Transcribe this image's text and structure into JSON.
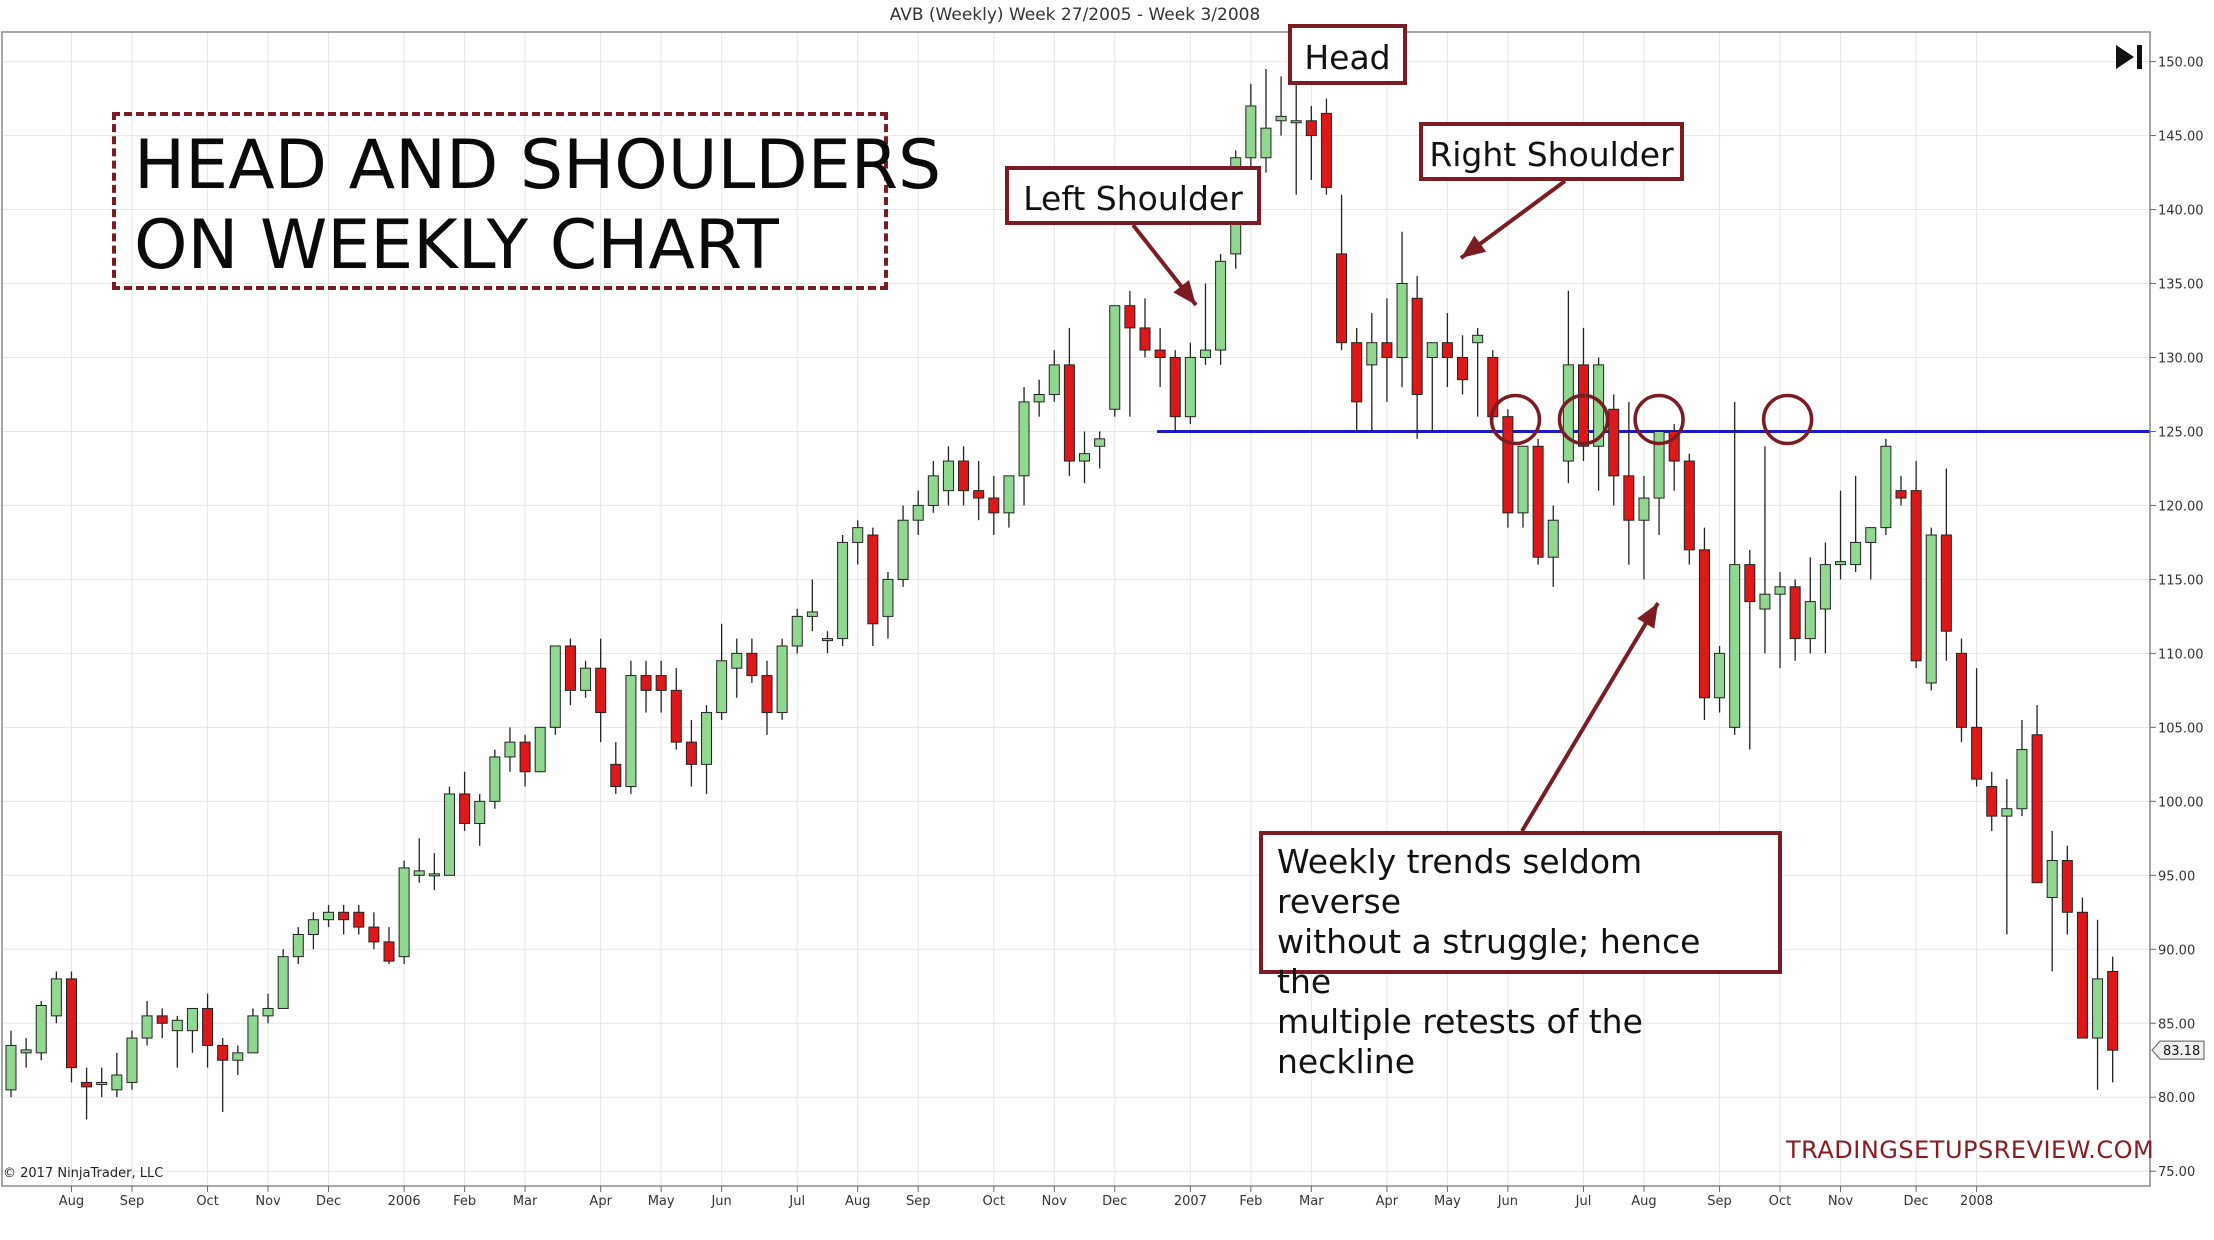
{
  "chart_title": "AVB (Weekly)  Week 27/2005 - Week 3/2008",
  "headline": [
    "HEAD AND SHOULDERS",
    "ON WEEKLY CHART"
  ],
  "labels": {
    "head": "Head",
    "left_shoulder": "Left Shoulder",
    "right_shoulder": "Right Shoulder"
  },
  "note_lines": [
    "Weekly trends seldom reverse",
    "without a struggle; hence the",
    "multiple retests of the neckline"
  ],
  "watermark": "TRADINGSETUPSREVIEW.COM",
  "copyright": "© 2017 NinjaTrader, LLC",
  "colors": {
    "up": "#90d890",
    "down": "#dd1818",
    "neckline": "#1a1ac8",
    "annotation": "#7b1c22",
    "grid": "#e6e6e6"
  },
  "icons": [
    "play-end-icon"
  ],
  "chart_data": {
    "type": "candlestick",
    "symbol": "AVB",
    "interval": "Weekly",
    "ylim": [
      74,
      152
    ],
    "y_ticks": [
      "75.00",
      "80.00",
      "85.00",
      "90.00",
      "95.00",
      "100.00",
      "105.00",
      "110.00",
      "115.00",
      "120.00",
      "125.00",
      "130.00",
      "135.00",
      "140.00",
      "145.00",
      "150.00"
    ],
    "x_ticks": [
      {
        "label": "Aug",
        "bar": 4
      },
      {
        "label": "Sep",
        "bar": 8
      },
      {
        "label": "Oct",
        "bar": 13
      },
      {
        "label": "Nov",
        "bar": 17
      },
      {
        "label": "Dec",
        "bar": 21
      },
      {
        "label": "2006",
        "bar": 26
      },
      {
        "label": "Feb",
        "bar": 30
      },
      {
        "label": "Mar",
        "bar": 34
      },
      {
        "label": "Apr",
        "bar": 39
      },
      {
        "label": "May",
        "bar": 43
      },
      {
        "label": "Jun",
        "bar": 47
      },
      {
        "label": "Jul",
        "bar": 52
      },
      {
        "label": "Aug",
        "bar": 56
      },
      {
        "label": "Sep",
        "bar": 60
      },
      {
        "label": "Oct",
        "bar": 65
      },
      {
        "label": "Nov",
        "bar": 69
      },
      {
        "label": "Dec",
        "bar": 73
      },
      {
        "label": "2007",
        "bar": 78
      },
      {
        "label": "Feb",
        "bar": 82
      },
      {
        "label": "Mar",
        "bar": 86
      },
      {
        "label": "Apr",
        "bar": 91
      },
      {
        "label": "May",
        "bar": 95
      },
      {
        "label": "Jun",
        "bar": 99
      },
      {
        "label": "Jul",
        "bar": 104
      },
      {
        "label": "Aug",
        "bar": 108
      },
      {
        "label": "Sep",
        "bar": 113
      },
      {
        "label": "Oct",
        "bar": 117
      },
      {
        "label": "Nov",
        "bar": 121
      },
      {
        "label": "Dec",
        "bar": 126
      },
      {
        "label": "2008",
        "bar": 130
      }
    ],
    "last_price": "83.18",
    "neckline": {
      "start_bar": 76,
      "value": 125.0
    },
    "retest_circles": [
      99.5,
      104,
      109,
      117.5
    ],
    "candles": [
      {
        "o": 80.5,
        "h": 84.5,
        "l": 80,
        "c": 83.5
      },
      {
        "o": 83,
        "h": 84,
        "l": 82,
        "c": 83.2
      },
      {
        "o": 83,
        "h": 86.5,
        "l": 82.5,
        "c": 86.2
      },
      {
        "o": 85.5,
        "h": 88.5,
        "l": 85,
        "c": 88
      },
      {
        "o": 88,
        "h": 88.5,
        "l": 81,
        "c": 82
      },
      {
        "o": 81,
        "h": 82,
        "l": 78.5,
        "c": 80.7
      },
      {
        "o": 81,
        "h": 82,
        "l": 80,
        "c": 81
      },
      {
        "o": 80.5,
        "h": 83,
        "l": 80,
        "c": 81.5
      },
      {
        "o": 81,
        "h": 84.5,
        "l": 80.5,
        "c": 84
      },
      {
        "o": 84,
        "h": 86.5,
        "l": 83.5,
        "c": 85.5
      },
      {
        "o": 85.5,
        "h": 86,
        "l": 84,
        "c": 85
      },
      {
        "o": 84.5,
        "h": 85.5,
        "l": 82,
        "c": 85.2
      },
      {
        "o": 84.5,
        "h": 86,
        "l": 83,
        "c": 86
      },
      {
        "o": 86,
        "h": 87,
        "l": 82,
        "c": 83.5
      },
      {
        "o": 83.5,
        "h": 84,
        "l": 79,
        "c": 82.5
      },
      {
        "o": 82.5,
        "h": 83.5,
        "l": 81.5,
        "c": 83
      },
      {
        "o": 83,
        "h": 86,
        "l": 83,
        "c": 85.5
      },
      {
        "o": 85.5,
        "h": 87,
        "l": 85,
        "c": 86
      },
      {
        "o": 86,
        "h": 90,
        "l": 86,
        "c": 89.5
      },
      {
        "o": 89.5,
        "h": 91.5,
        "l": 89,
        "c": 91
      },
      {
        "o": 91,
        "h": 92.5,
        "l": 90,
        "c": 92
      },
      {
        "o": 92,
        "h": 93,
        "l": 91.5,
        "c": 92.5
      },
      {
        "o": 92.5,
        "h": 93,
        "l": 91,
        "c": 92
      },
      {
        "o": 92.5,
        "h": 93,
        "l": 91,
        "c": 91.5
      },
      {
        "o": 91.5,
        "h": 92.5,
        "l": 90,
        "c": 90.5
      },
      {
        "o": 90.5,
        "h": 91.5,
        "l": 89,
        "c": 89.2
      },
      {
        "o": 89.5,
        "h": 96,
        "l": 89,
        "c": 95.5
      },
      {
        "o": 95,
        "h": 97.5,
        "l": 94.5,
        "c": 95.3
      },
      {
        "o": 95,
        "h": 96.5,
        "l": 94,
        "c": 95.1
      },
      {
        "o": 95,
        "h": 101,
        "l": 95,
        "c": 100.5
      },
      {
        "o": 100.5,
        "h": 102,
        "l": 98,
        "c": 98.5
      },
      {
        "o": 98.5,
        "h": 100.5,
        "l": 97,
        "c": 100
      },
      {
        "o": 100,
        "h": 103.5,
        "l": 99.5,
        "c": 103
      },
      {
        "o": 103,
        "h": 105,
        "l": 102,
        "c": 104
      },
      {
        "o": 104,
        "h": 104.5,
        "l": 101,
        "c": 102
      },
      {
        "o": 102,
        "h": 105,
        "l": 102,
        "c": 105
      },
      {
        "o": 105,
        "h": 110.5,
        "l": 104.5,
        "c": 110.5
      },
      {
        "o": 110.5,
        "h": 111,
        "l": 106.5,
        "c": 107.5
      },
      {
        "o": 107.5,
        "h": 109.5,
        "l": 107,
        "c": 109
      },
      {
        "o": 109,
        "h": 111,
        "l": 104,
        "c": 106
      },
      {
        "o": 102.5,
        "h": 104,
        "l": 100.5,
        "c": 101
      },
      {
        "o": 101,
        "h": 109.5,
        "l": 100.5,
        "c": 108.5
      },
      {
        "o": 108.5,
        "h": 109.5,
        "l": 106,
        "c": 107.5
      },
      {
        "o": 108.5,
        "h": 109.5,
        "l": 106,
        "c": 107.5
      },
      {
        "o": 107.5,
        "h": 109,
        "l": 103.5,
        "c": 104
      },
      {
        "o": 104,
        "h": 105.5,
        "l": 101,
        "c": 102.5
      },
      {
        "o": 102.5,
        "h": 106.5,
        "l": 100.5,
        "c": 106
      },
      {
        "o": 106,
        "h": 112,
        "l": 105.5,
        "c": 109.5
      },
      {
        "o": 109,
        "h": 111,
        "l": 107,
        "c": 110
      },
      {
        "o": 110,
        "h": 111,
        "l": 108,
        "c": 108.5
      },
      {
        "o": 108.5,
        "h": 109.5,
        "l": 104.5,
        "c": 106
      },
      {
        "o": 106,
        "h": 111,
        "l": 105.5,
        "c": 110.5
      },
      {
        "o": 110.5,
        "h": 113,
        "l": 110,
        "c": 112.5
      },
      {
        "o": 112.5,
        "h": 115,
        "l": 111.5,
        "c": 112.8
      },
      {
        "o": 111,
        "h": 111.5,
        "l": 110,
        "c": 111
      },
      {
        "o": 111,
        "h": 118,
        "l": 110.5,
        "c": 117.5
      },
      {
        "o": 117.5,
        "h": 119,
        "l": 116,
        "c": 118.5
      },
      {
        "o": 118,
        "h": 118.5,
        "l": 110.5,
        "c": 112
      },
      {
        "o": 112.5,
        "h": 115.5,
        "l": 111,
        "c": 115
      },
      {
        "o": 115,
        "h": 120,
        "l": 114.5,
        "c": 119
      },
      {
        "o": 119,
        "h": 121,
        "l": 118,
        "c": 120
      },
      {
        "o": 120,
        "h": 123,
        "l": 119.5,
        "c": 122
      },
      {
        "o": 121,
        "h": 124,
        "l": 120,
        "c": 123
      },
      {
        "o": 123,
        "h": 124,
        "l": 120,
        "c": 121
      },
      {
        "o": 121,
        "h": 123,
        "l": 119,
        "c": 120.5
      },
      {
        "o": 120.5,
        "h": 122,
        "l": 118,
        "c": 119.5
      },
      {
        "o": 119.5,
        "h": 122,
        "l": 118.5,
        "c": 122
      },
      {
        "o": 122,
        "h": 128,
        "l": 120,
        "c": 127
      },
      {
        "o": 127,
        "h": 128.5,
        "l": 126,
        "c": 127.5
      },
      {
        "o": 127.5,
        "h": 130.5,
        "l": 127,
        "c": 129.5
      },
      {
        "o": 129.5,
        "h": 132,
        "l": 122,
        "c": 123
      },
      {
        "o": 123,
        "h": 125,
        "l": 121.5,
        "c": 123.5
      },
      {
        "o": 124,
        "h": 125,
        "l": 122.5,
        "c": 124.5
      },
      {
        "o": 126.5,
        "h": 133.5,
        "l": 126,
        "c": 133.5
      },
      {
        "o": 133.5,
        "h": 134.5,
        "l": 126,
        "c": 132
      },
      {
        "o": 132,
        "h": 134,
        "l": 130,
        "c": 130.5
      },
      {
        "o": 130.5,
        "h": 132,
        "l": 128,
        "c": 130
      },
      {
        "o": 130,
        "h": 130.5,
        "l": 125,
        "c": 126
      },
      {
        "o": 126,
        "h": 131,
        "l": 125.5,
        "c": 130
      },
      {
        "o": 130,
        "h": 135,
        "l": 129.5,
        "c": 130.5
      },
      {
        "o": 130.5,
        "h": 137,
        "l": 129.5,
        "c": 136.5
      },
      {
        "o": 137,
        "h": 144,
        "l": 136,
        "c": 143.5
      },
      {
        "o": 143.5,
        "h": 148.5,
        "l": 142,
        "c": 147
      },
      {
        "o": 143.5,
        "h": 149.5,
        "l": 142.5,
        "c": 145.5
      },
      {
        "o": 146,
        "h": 149,
        "l": 145,
        "c": 146.3
      },
      {
        "o": 146,
        "h": 150,
        "l": 141,
        "c": 146
      },
      {
        "o": 146,
        "h": 147,
        "l": 142,
        "c": 145
      },
      {
        "o": 146.5,
        "h": 147.5,
        "l": 141,
        "c": 141.5
      },
      {
        "o": 137,
        "h": 141,
        "l": 130.5,
        "c": 131
      },
      {
        "o": 131,
        "h": 132,
        "l": 125,
        "c": 127
      },
      {
        "o": 129.5,
        "h": 133,
        "l": 125,
        "c": 131
      },
      {
        "o": 131,
        "h": 134,
        "l": 127,
        "c": 130
      },
      {
        "o": 130,
        "h": 138.5,
        "l": 128,
        "c": 135
      },
      {
        "o": 134,
        "h": 135.5,
        "l": 124.5,
        "c": 127.5
      },
      {
        "o": 130,
        "h": 131,
        "l": 125,
        "c": 131
      },
      {
        "o": 131,
        "h": 133,
        "l": 128,
        "c": 130
      },
      {
        "o": 130,
        "h": 131.5,
        "l": 127.5,
        "c": 128.5
      },
      {
        "o": 131,
        "h": 132,
        "l": 126,
        "c": 131.5
      },
      {
        "o": 130,
        "h": 130.5,
        "l": 125.5,
        "c": 126
      },
      {
        "o": 126,
        "h": 126.5,
        "l": 118.5,
        "c": 119.5
      },
      {
        "o": 119.5,
        "h": 124,
        "l": 118.5,
        "c": 124
      },
      {
        "o": 124,
        "h": 124.5,
        "l": 116,
        "c": 116.5
      },
      {
        "o": 116.5,
        "h": 120,
        "l": 114.5,
        "c": 119
      },
      {
        "o": 123,
        "h": 134.5,
        "l": 121.5,
        "c": 129.5
      },
      {
        "o": 129.5,
        "h": 132,
        "l": 123,
        "c": 124
      },
      {
        "o": 124,
        "h": 130,
        "l": 121,
        "c": 129.5
      },
      {
        "o": 126.5,
        "h": 127.5,
        "l": 120,
        "c": 122
      },
      {
        "o": 122,
        "h": 127,
        "l": 116,
        "c": 119
      },
      {
        "o": 119,
        "h": 122,
        "l": 115,
        "c": 120.5
      },
      {
        "o": 120.5,
        "h": 125,
        "l": 118,
        "c": 125
      },
      {
        "o": 125,
        "h": 125.5,
        "l": 121,
        "c": 123
      },
      {
        "o": 123,
        "h": 123.5,
        "l": 116,
        "c": 117
      },
      {
        "o": 117,
        "h": 118.5,
        "l": 105.5,
        "c": 107
      },
      {
        "o": 107,
        "h": 110.5,
        "l": 106,
        "c": 110
      },
      {
        "o": 105,
        "h": 127,
        "l": 104.5,
        "c": 116
      },
      {
        "o": 116,
        "h": 117,
        "l": 103.5,
        "c": 113.5
      },
      {
        "o": 113,
        "h": 124,
        "l": 110,
        "c": 114
      },
      {
        "o": 114,
        "h": 115.5,
        "l": 109,
        "c": 114.5
      },
      {
        "o": 114.5,
        "h": 115,
        "l": 109.5,
        "c": 111
      },
      {
        "o": 111,
        "h": 116.5,
        "l": 110,
        "c": 113.5
      },
      {
        "o": 113,
        "h": 117.5,
        "l": 110,
        "c": 116
      },
      {
        "o": 116,
        "h": 121,
        "l": 115,
        "c": 116.2
      },
      {
        "o": 116,
        "h": 122,
        "l": 115.5,
        "c": 117.5
      },
      {
        "o": 117.5,
        "h": 118.5,
        "l": 115,
        "c": 118.5
      },
      {
        "o": 118.5,
        "h": 124.5,
        "l": 118,
        "c": 124
      },
      {
        "o": 121,
        "h": 122,
        "l": 120,
        "c": 120.5
      },
      {
        "o": 121,
        "h": 123,
        "l": 109,
        "c": 109.5
      },
      {
        "o": 108,
        "h": 118.5,
        "l": 107.5,
        "c": 118
      },
      {
        "o": 118,
        "h": 122.5,
        "l": 109.5,
        "c": 111.5
      },
      {
        "o": 110,
        "h": 111,
        "l": 104,
        "c": 105
      },
      {
        "o": 105,
        "h": 109,
        "l": 101,
        "c": 101.5
      },
      {
        "o": 101,
        "h": 102,
        "l": 98,
        "c": 99
      },
      {
        "o": 99,
        "h": 101.5,
        "l": 91,
        "c": 99.5
      },
      {
        "o": 99.5,
        "h": 105.5,
        "l": 99,
        "c": 103.5
      },
      {
        "o": 104.5,
        "h": 106.5,
        "l": 94.5,
        "c": 94.5
      },
      {
        "o": 93.5,
        "h": 98,
        "l": 88.5,
        "c": 96
      },
      {
        "o": 96,
        "h": 97,
        "l": 91,
        "c": 92.5
      },
      {
        "o": 92.5,
        "h": 93.5,
        "l": 84,
        "c": 84
      },
      {
        "o": 84,
        "h": 92,
        "l": 80.5,
        "c": 88
      },
      {
        "o": 88.5,
        "h": 89.5,
        "l": 81,
        "c": 83.18
      }
    ]
  }
}
